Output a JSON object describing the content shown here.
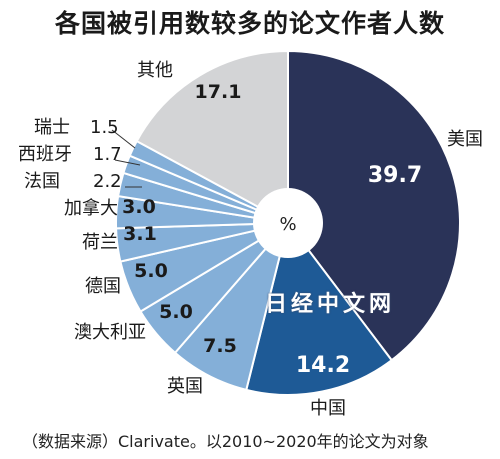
{
  "chart_data": {
    "type": "pie",
    "title": "各国被引用数较多的论文作者人数",
    "center_label": "%",
    "source": "（数据来源）Clarivate。以2010~2020年的论文为对象",
    "slices": [
      {
        "label": "美国",
        "value": 39.7,
        "value_text": "39.7",
        "color": "#2a3358"
      },
      {
        "label": "中国",
        "value": 14.2,
        "value_text": "14.2",
        "color": "#1e5a96"
      },
      {
        "label": "英国",
        "value": 7.5,
        "value_text": "7.5",
        "color": "#84afd8"
      },
      {
        "label": "澳大利亚",
        "value": 5.0,
        "value_text": "5.0",
        "color": "#84afd8"
      },
      {
        "label": "德国",
        "value": 5.0,
        "value_text": "5.0",
        "color": "#84afd8"
      },
      {
        "label": "荷兰",
        "value": 3.1,
        "value_text": "3.1",
        "color": "#84afd8"
      },
      {
        "label": "加拿大",
        "value": 3.0,
        "value_text": "3.0",
        "color": "#84afd8"
      },
      {
        "label": "法国",
        "value": 2.2,
        "value_text": "2.2",
        "color": "#84afd8"
      },
      {
        "label": "西班牙",
        "value": 1.7,
        "value_text": "1.7",
        "color": "#84afd8"
      },
      {
        "label": "瑞士",
        "value": 1.5,
        "value_text": "1.5",
        "color": "#84afd8"
      },
      {
        "label": "其他",
        "value": 17.1,
        "value_text": "17.1",
        "color": "#d3d4d6"
      }
    ]
  },
  "watermark": "日经中文网"
}
